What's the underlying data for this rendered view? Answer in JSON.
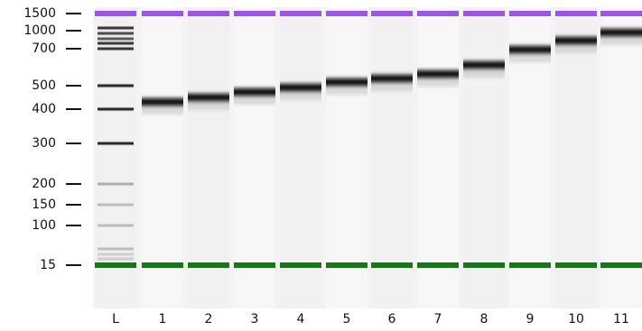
{
  "size_labels": [
    "1500",
    "1000",
    "700",
    "500",
    "400",
    "300",
    "200",
    "150",
    "100",
    "15"
  ],
  "lane_labels": [
    "L",
    "1",
    "2",
    "3",
    "4",
    "5",
    "6",
    "7",
    "8",
    "9",
    "10",
    "11"
  ]
}
